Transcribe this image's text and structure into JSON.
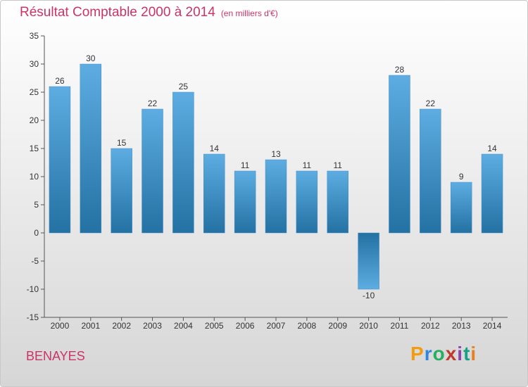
{
  "header": {
    "title": "Résultat Comptable 2000 à 2014",
    "unit": "(en milliers d'€)"
  },
  "commune": "BENAYES",
  "logo": {
    "letters": [
      "P",
      "r",
      "o",
      "x",
      "i",
      "t",
      "i"
    ],
    "colors": [
      "#f39c12",
      "#2e86de",
      "#27ae60",
      "#c0392b",
      "#8e44ad",
      "#16a085",
      "#e67e22"
    ]
  },
  "colors": {
    "bar_top": "#5dade2",
    "bar_bottom": "#2471a3",
    "title": "#cc3366"
  },
  "chart_data": {
    "type": "bar",
    "title": "Résultat Comptable 2000 à 2014",
    "xlabel": "",
    "ylabel": "",
    "categories": [
      "2000",
      "2001",
      "2002",
      "2003",
      "2004",
      "2005",
      "2006",
      "2007",
      "2008",
      "2009",
      "2010",
      "2011",
      "2012",
      "2013",
      "2014"
    ],
    "values": [
      26,
      30,
      15,
      22,
      25,
      14,
      11,
      13,
      11,
      11,
      -10,
      28,
      22,
      9,
      14
    ],
    "value_labels": [
      "26",
      "30",
      "15",
      "22",
      "25",
      "14",
      "11",
      "13",
      "11",
      "11",
      "-10",
      "28",
      "22",
      "9",
      "14"
    ],
    "ylim": [
      -15,
      35
    ],
    "yticks": [
      -15,
      -10,
      -5,
      0,
      5,
      10,
      15,
      20,
      25,
      30,
      35
    ],
    "ytick_labels": [
      "-15",
      "-10",
      "-5",
      "0",
      "5",
      "10",
      "15",
      "20",
      "25",
      "30",
      "35"
    ],
    "grid": false
  }
}
